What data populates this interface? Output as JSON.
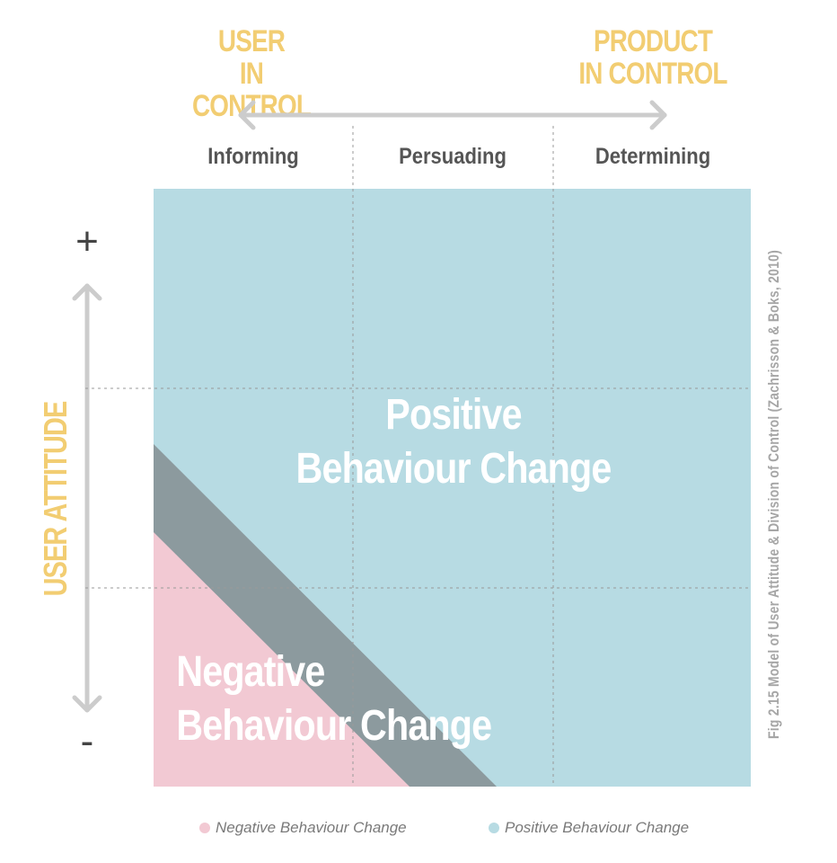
{
  "diagram": {
    "axis_top": {
      "left_label_line1": "USER",
      "left_label_line2": "IN CONTROL",
      "right_label_line1": "PRODUCT",
      "right_label_line2": "IN CONTROL"
    },
    "columns": [
      "Informing",
      "Persuading",
      "Determining"
    ],
    "axis_left": {
      "label": "USER ATTITUDE",
      "plus": "+",
      "minus": "-"
    },
    "regions": {
      "positive_line1": "Positive",
      "positive_line2": "Behaviour Change",
      "negative_line1": "Negative",
      "negative_line2": "Behaviour Change"
    },
    "caption": "Fig 2.15 Model of User Attitude & Division of Control (Zachrisson & Boks, 2010)",
    "legend": [
      {
        "label": "Negative Behaviour Change",
        "color": "#f2c9d3"
      },
      {
        "label": "Positive Behaviour Change",
        "color": "#b7dbe3"
      }
    ],
    "colors": {
      "positive": "#b7dbe3",
      "negative": "#f2c9d3",
      "transition": "#8c9a9e",
      "accent": "#f2cd72",
      "arrow": "#cccccc"
    }
  }
}
